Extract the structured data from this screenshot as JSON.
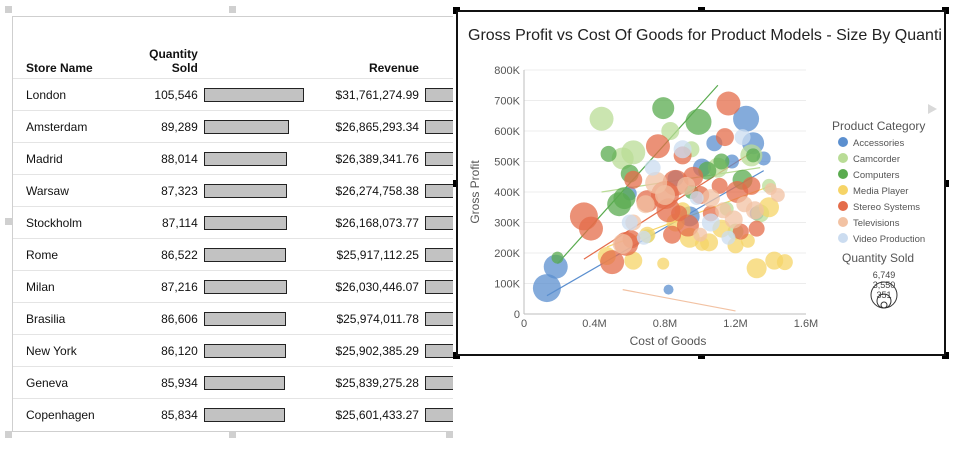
{
  "table": {
    "columns": {
      "store": "Store Name",
      "qty_line1": "Quantity",
      "qty_line2": "Sold",
      "revenue": "Revenue"
    },
    "rows": [
      {
        "store": "London",
        "qty": "105,546",
        "revenue": "$31,761,274.99",
        "qty_value": 105546
      },
      {
        "store": "Amsterdam",
        "qty": "89,289",
        "revenue": "$26,865,293.34",
        "qty_value": 89289
      },
      {
        "store": "Madrid",
        "qty": "88,014",
        "revenue": "$26,389,341.76",
        "qty_value": 88014
      },
      {
        "store": "Warsaw",
        "qty": "87,323",
        "revenue": "$26,274,758.38",
        "qty_value": 87323
      },
      {
        "store": "Stockholm",
        "qty": "87,114",
        "revenue": "$26,168,073.77",
        "qty_value": 87114
      },
      {
        "store": "Rome",
        "qty": "86,522",
        "revenue": "$25,917,112.25",
        "qty_value": 86522
      },
      {
        "store": "Milan",
        "qty": "87,216",
        "revenue": "$26,030,446.07",
        "qty_value": 87216
      },
      {
        "store": "Brasilia",
        "qty": "86,606",
        "revenue": "$25,974,011.78",
        "qty_value": 86606
      },
      {
        "store": "New York",
        "qty": "86,120",
        "revenue": "$25,902,385.29",
        "qty_value": 86120
      },
      {
        "store": "Geneva",
        "qty": "85,934",
        "revenue": "$25,839,275.28",
        "qty_value": 85934
      },
      {
        "store": "Copenhagen",
        "qty": "85,834",
        "revenue": "$25,601,433.27",
        "qty_value": 85834
      }
    ]
  },
  "chart_data": {
    "type": "scatter",
    "title": "Gross Profit vs Cost Of Goods for Product Models - Size By Quanti",
    "xlabel": "Cost of Goods",
    "ylabel": "Gross Profit",
    "xlim": [
      0,
      1600000
    ],
    "ylim": [
      0,
      800000
    ],
    "x_ticks": [
      0,
      400000,
      800000,
      1200000,
      1600000
    ],
    "x_tick_labels": [
      "0",
      "0.4M",
      "0.8M",
      "1.2M",
      "1.6M"
    ],
    "y_ticks": [
      0,
      100000,
      200000,
      300000,
      400000,
      500000,
      600000,
      700000,
      800000
    ],
    "y_tick_labels": [
      "0",
      "100K",
      "200K",
      "300K",
      "400K",
      "500K",
      "600K",
      "700K",
      "800K"
    ],
    "legend_title": "Product Category",
    "size_legend_title": "Quantity Sold",
    "size_legend_values": [
      "6,749",
      "3,550",
      "351"
    ],
    "series": [
      {
        "name": "Accessories",
        "color": "#5b8fcf",
        "points": [
          [
            130000,
            85000,
            14
          ],
          [
            180000,
            155000,
            12
          ],
          [
            600000,
            395000,
            7
          ],
          [
            860000,
            445000,
            8
          ],
          [
            940000,
            320000,
            10
          ],
          [
            1010000,
            480000,
            9
          ],
          [
            1080000,
            560000,
            8
          ],
          [
            1180000,
            500000,
            7
          ],
          [
            1260000,
            640000,
            13
          ],
          [
            1300000,
            560000,
            11
          ],
          [
            1320000,
            330000,
            7
          ],
          [
            1360000,
            510000,
            7
          ],
          [
            820000,
            80000,
            5
          ]
        ]
      },
      {
        "name": "Camcorder",
        "color": "#b9dc96",
        "points": [
          [
            440000,
            640000,
            12
          ],
          [
            560000,
            510000,
            11
          ],
          [
            620000,
            530000,
            12
          ],
          [
            700000,
            255000,
            7
          ],
          [
            830000,
            600000,
            9
          ],
          [
            950000,
            540000,
            8
          ],
          [
            1100000,
            480000,
            10
          ],
          [
            1150000,
            345000,
            7
          ],
          [
            1200000,
            270000,
            8
          ],
          [
            1290000,
            520000,
            11
          ],
          [
            1340000,
            330000,
            9
          ],
          [
            1390000,
            420000,
            7
          ]
        ]
      },
      {
        "name": "Computers",
        "color": "#5aab4f",
        "points": [
          [
            190000,
            185000,
            6
          ],
          [
            480000,
            525000,
            8
          ],
          [
            540000,
            360000,
            12
          ],
          [
            570000,
            380000,
            11
          ],
          [
            600000,
            460000,
            9
          ],
          [
            790000,
            675000,
            11
          ],
          [
            950000,
            400000,
            7
          ],
          [
            990000,
            630000,
            13
          ],
          [
            1040000,
            470000,
            9
          ],
          [
            1120000,
            500000,
            8
          ],
          [
            1240000,
            440000,
            10
          ],
          [
            1300000,
            520000,
            7
          ]
        ]
      },
      {
        "name": "Media Player",
        "color": "#f6d467",
        "points": [
          [
            470000,
            190000,
            9
          ],
          [
            620000,
            175000,
            9
          ],
          [
            700000,
            260000,
            8
          ],
          [
            790000,
            165000,
            6
          ],
          [
            860000,
            300000,
            9
          ],
          [
            900000,
            340000,
            8
          ],
          [
            940000,
            250000,
            10
          ],
          [
            1010000,
            230000,
            7
          ],
          [
            1050000,
            235000,
            9
          ],
          [
            1120000,
            280000,
            9
          ],
          [
            1200000,
            225000,
            8
          ],
          [
            1270000,
            240000,
            7
          ],
          [
            1320000,
            150000,
            10
          ],
          [
            1390000,
            350000,
            10
          ],
          [
            1420000,
            175000,
            9
          ],
          [
            1480000,
            170000,
            8
          ]
        ]
      },
      {
        "name": "Stereo Systems",
        "color": "#e46c4a",
        "points": [
          [
            340000,
            320000,
            14
          ],
          [
            380000,
            280000,
            12
          ],
          [
            500000,
            170000,
            12
          ],
          [
            580000,
            230000,
            12
          ],
          [
            610000,
            245000,
            9
          ],
          [
            620000,
            440000,
            9
          ],
          [
            700000,
            370000,
            11
          ],
          [
            760000,
            550000,
            12
          ],
          [
            800000,
            390000,
            14
          ],
          [
            820000,
            340000,
            12
          ],
          [
            840000,
            260000,
            9
          ],
          [
            860000,
            430000,
            13
          ],
          [
            880000,
            330000,
            8
          ],
          [
            900000,
            520000,
            9
          ],
          [
            930000,
            290000,
            11
          ],
          [
            960000,
            450000,
            10
          ],
          [
            1000000,
            390000,
            9
          ],
          [
            1060000,
            330000,
            8
          ],
          [
            1110000,
            420000,
            8
          ],
          [
            1140000,
            580000,
            9
          ],
          [
            1160000,
            690000,
            12
          ],
          [
            1210000,
            400000,
            11
          ],
          [
            1230000,
            270000,
            8
          ],
          [
            1290000,
            420000,
            9
          ],
          [
            1320000,
            280000,
            8
          ]
        ]
      },
      {
        "name": "Televisions",
        "color": "#f2c2a3",
        "points": [
          [
            560000,
            230000,
            10
          ],
          [
            620000,
            300000,
            8
          ],
          [
            690000,
            360000,
            9
          ],
          [
            750000,
            430000,
            11
          ],
          [
            800000,
            390000,
            10
          ],
          [
            920000,
            420000,
            9
          ],
          [
            1000000,
            260000,
            7
          ],
          [
            1060000,
            380000,
            9
          ],
          [
            1130000,
            340000,
            8
          ],
          [
            1190000,
            310000,
            9
          ],
          [
            1250000,
            360000,
            8
          ],
          [
            1310000,
            340000,
            9
          ],
          [
            1400000,
            410000,
            6
          ],
          [
            1440000,
            390000,
            7
          ]
        ]
      },
      {
        "name": "Video Production",
        "color": "#cbdcf0",
        "points": [
          [
            600000,
            300000,
            8
          ],
          [
            680000,
            250000,
            7
          ],
          [
            730000,
            480000,
            8
          ],
          [
            900000,
            540000,
            9
          ],
          [
            980000,
            380000,
            7
          ],
          [
            1060000,
            300000,
            9
          ],
          [
            1160000,
            250000,
            7
          ],
          [
            1240000,
            580000,
            8
          ]
        ]
      }
    ],
    "trendlines": [
      {
        "series": "Accessories",
        "color": "#5b8fcf",
        "from": [
          130000,
          60000
        ],
        "to": [
          1360000,
          470000
        ]
      },
      {
        "series": "Computers",
        "color": "#5aab4f",
        "from": [
          190000,
          165000
        ],
        "to": [
          1100000,
          750000
        ]
      },
      {
        "series": "Stereo Systems",
        "color": "#e46c4a",
        "from": [
          340000,
          180000
        ],
        "to": [
          1320000,
          540000
        ]
      },
      {
        "series": "Media Player",
        "color": "#f6d467",
        "from": [
          470000,
          220000
        ],
        "to": [
          1400000,
          420000
        ]
      },
      {
        "series": "Televisions",
        "color": "#f2c2a3",
        "from": [
          560000,
          80000
        ],
        "to": [
          1200000,
          10000
        ]
      },
      {
        "series": "Camcorder",
        "color": "#b9dc96",
        "from": [
          440000,
          400000
        ],
        "to": [
          1340000,
          480000
        ]
      }
    ]
  }
}
